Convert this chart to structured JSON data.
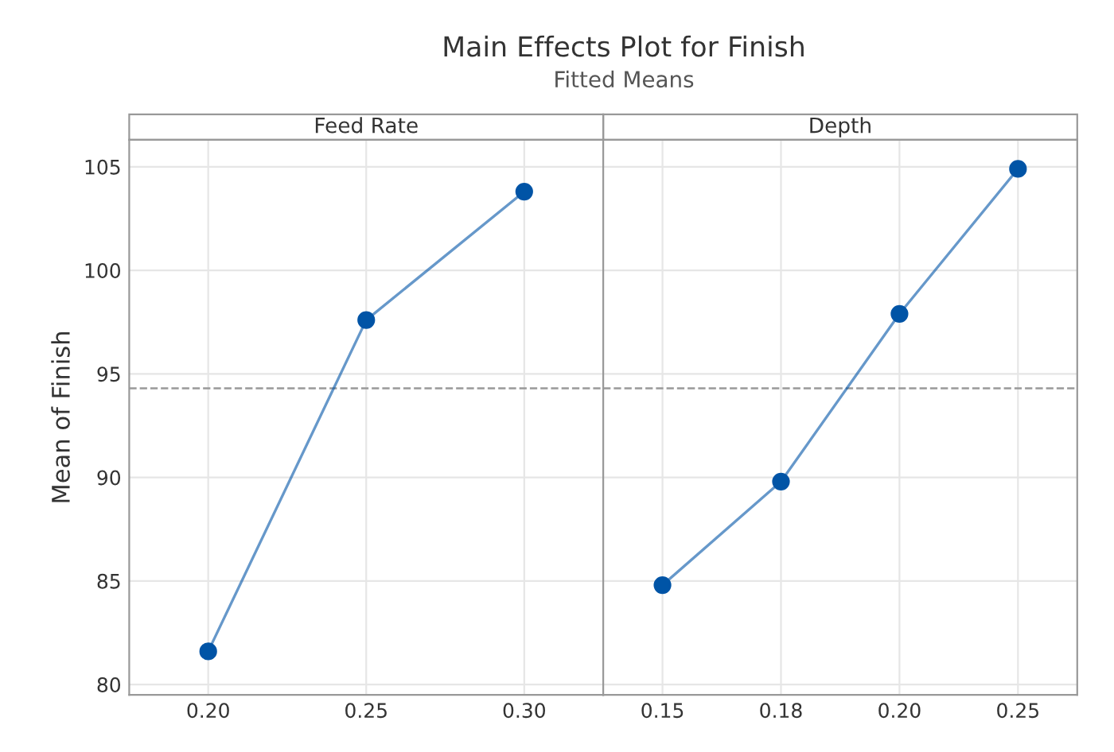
{
  "chart_data": [
    {
      "type": "line",
      "title": "Main Effects Plot for Finish",
      "subtitle": "Fitted Means",
      "xlabel": "Feed Rate",
      "ylabel": "Mean of Finish",
      "categories": [
        "0.20",
        "0.25",
        "0.30"
      ],
      "series": [
        {
          "color": "#0054a6",
          "values": [
            81.6,
            97.6,
            103.8
          ]
        }
      ],
      "ylim": [
        79.5,
        106.3
      ],
      "yticks": [
        80,
        85,
        90,
        95,
        100,
        105
      ],
      "grid": true,
      "marker": "circle",
      "ref_lines": [
        {
          "axis": "y",
          "value": 94.3,
          "color": "#999999",
          "line_style": "dashed"
        }
      ]
    },
    {
      "type": "line",
      "xlabel": "Depth",
      "categories": [
        "0.15",
        "0.18",
        "0.20",
        "0.25"
      ],
      "series": [
        {
          "color": "#0054a6",
          "values": [
            84.8,
            89.8,
            97.9,
            104.9
          ]
        }
      ],
      "ylim": [
        79.5,
        106.3
      ],
      "yticks": [
        80,
        85,
        90,
        95,
        100,
        105
      ],
      "grid": true,
      "marker": "circle",
      "tick_labels": "x",
      "ref_lines": [
        {
          "axis": "y",
          "value": 94.3,
          "color": "#999999",
          "line_style": "dashed"
        }
      ]
    }
  ]
}
